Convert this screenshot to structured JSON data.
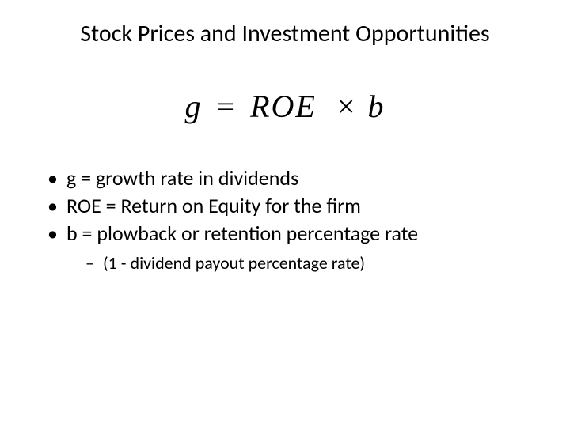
{
  "title": "Stock Prices and Investment Opportunities",
  "equation": {
    "lhs": "g",
    "eq": "=",
    "term1": "ROE",
    "mult": "×",
    "term2": "b"
  },
  "bullets": [
    "g = growth rate in dividends",
    "ROE = Return on Equity for the firm",
    "b = plowback or retention percentage rate"
  ],
  "sub_bullet": "(1 - dividend payout percentage rate)",
  "style": {
    "background_color": "#ffffff",
    "text_color": "#000000",
    "title_fontsize": 30,
    "equation_fontsize": 40,
    "bullet_fontsize": 26,
    "sub_bullet_fontsize": 22,
    "font_family": "Calibri, Arial, sans-serif",
    "equation_font_family": "Times New Roman, serif",
    "equation_style": "italic"
  }
}
